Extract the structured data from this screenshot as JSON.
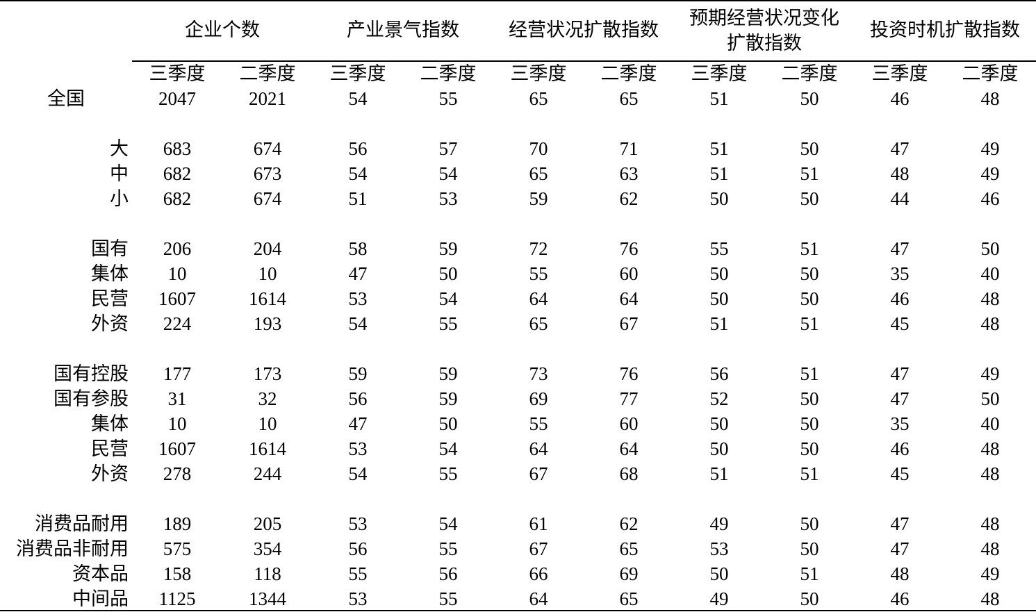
{
  "table": {
    "groups": [
      {
        "lines": [
          "企业个数"
        ]
      },
      {
        "lines": [
          "产业景气指数"
        ]
      },
      {
        "lines": [
          "经营状况扩散指数"
        ]
      },
      {
        "lines": [
          "预期经营状况变化",
          "扩散指数"
        ]
      },
      {
        "lines": [
          "投资时机扩散指数"
        ]
      }
    ],
    "subheaders": [
      "三季度",
      "二季度",
      "三季度",
      "二季度",
      "三季度",
      "二季度",
      "三季度",
      "二季度",
      "三季度",
      "二季度"
    ],
    "sections": [
      {
        "rows": [
          {
            "label": "全国",
            "values": [
              2047,
              2021,
              54,
              55,
              65,
              65,
              51,
              50,
              46,
              48
            ]
          }
        ]
      },
      {
        "rows": [
          {
            "label": "大",
            "values": [
              683,
              674,
              56,
              57,
              70,
              71,
              51,
              50,
              47,
              49
            ]
          },
          {
            "label": "中",
            "values": [
              682,
              673,
              54,
              54,
              65,
              63,
              51,
              51,
              48,
              49
            ]
          },
          {
            "label": "小",
            "values": [
              682,
              674,
              51,
              53,
              59,
              62,
              50,
              50,
              44,
              46
            ]
          }
        ]
      },
      {
        "rows": [
          {
            "label": "国有",
            "values": [
              206,
              204,
              58,
              59,
              72,
              76,
              55,
              51,
              47,
              50
            ]
          },
          {
            "label": "集体",
            "values": [
              10,
              10,
              47,
              50,
              55,
              60,
              50,
              50,
              35,
              40
            ]
          },
          {
            "label": "民营",
            "values": [
              1607,
              1614,
              53,
              54,
              64,
              64,
              50,
              50,
              46,
              48
            ]
          },
          {
            "label": "外资",
            "values": [
              224,
              193,
              54,
              55,
              65,
              67,
              51,
              51,
              45,
              48
            ]
          }
        ]
      },
      {
        "rows": [
          {
            "label": "国有控股",
            "values": [
              177,
              173,
              59,
              59,
              73,
              76,
              56,
              51,
              47,
              49
            ]
          },
          {
            "label": "国有参股",
            "values": [
              31,
              32,
              56,
              59,
              69,
              77,
              52,
              50,
              47,
              50
            ]
          },
          {
            "label": "集体",
            "values": [
              10,
              10,
              47,
              50,
              55,
              60,
              50,
              50,
              35,
              40
            ]
          },
          {
            "label": "民营",
            "values": [
              1607,
              1614,
              53,
              54,
              64,
              64,
              50,
              50,
              46,
              48
            ]
          },
          {
            "label": "外资",
            "values": [
              278,
              244,
              54,
              55,
              67,
              68,
              51,
              51,
              45,
              48
            ]
          }
        ]
      },
      {
        "rows": [
          {
            "label": "消费品耐用",
            "values": [
              189,
              205,
              53,
              54,
              61,
              62,
              49,
              50,
              47,
              48
            ]
          },
          {
            "label": "消费品非耐用",
            "values": [
              575,
              354,
              56,
              55,
              67,
              65,
              53,
              50,
              47,
              48
            ]
          },
          {
            "label": "资本品",
            "values": [
              158,
              118,
              55,
              56,
              66,
              69,
              50,
              51,
              48,
              49
            ]
          },
          {
            "label": "中间品",
            "values": [
              1125,
              1344,
              53,
              55,
              64,
              65,
              49,
              50,
              46,
              48
            ]
          }
        ]
      }
    ]
  }
}
